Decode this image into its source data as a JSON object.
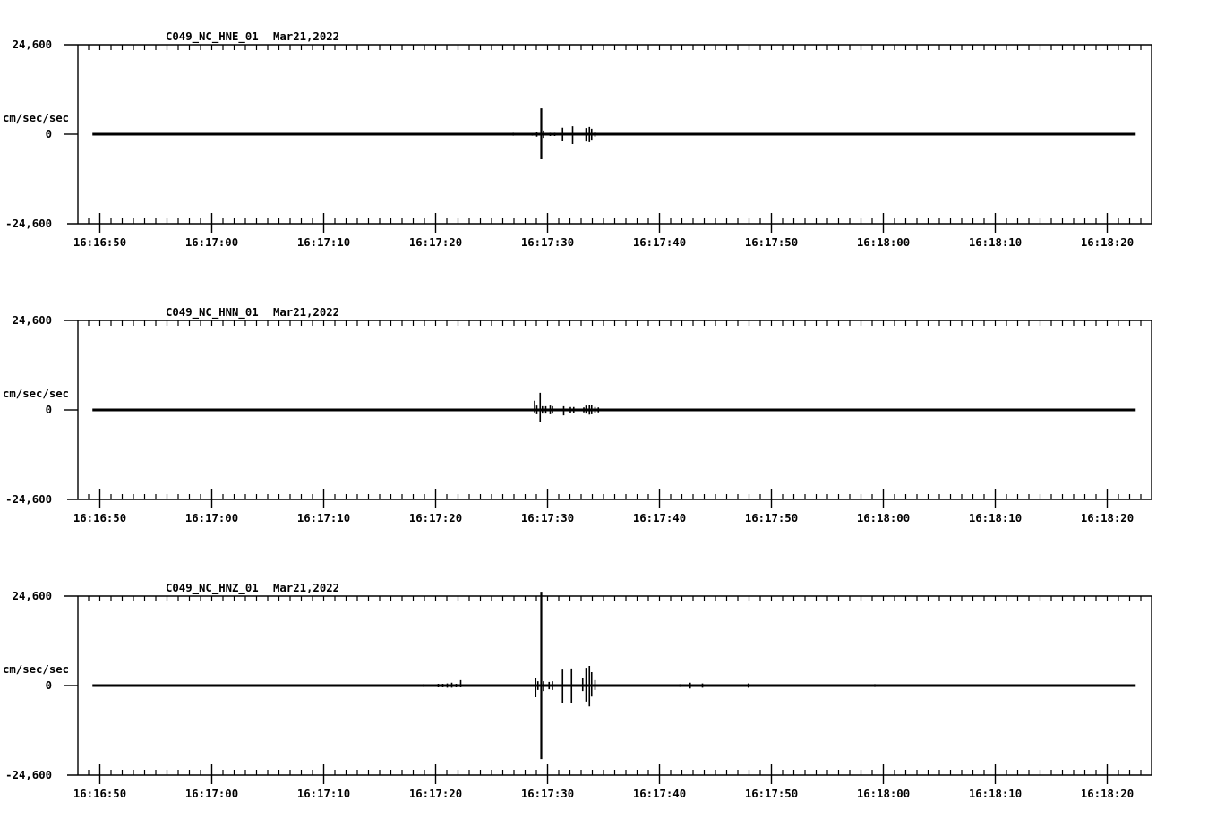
{
  "app": {
    "name": "seismogram-waveform-display",
    "background": "#ffffff",
    "ink": "#000000"
  },
  "chart_data": [
    {
      "type": "line",
      "panel_id": "HNE",
      "title_station": "C049_NC_HNE_01",
      "title_date": "Mar21,2022",
      "ylabel": "cm/sec/sec",
      "ytick_top": "24,600",
      "ytick_zero": "0",
      "ytick_bottom": "-24,600",
      "ylim": [
        -24.6,
        24.6
      ],
      "x_axis": {
        "start": "16:16:48",
        "end": "16:18:24",
        "major_tick_labels": [
          "16:16:50",
          "16:17:00",
          "16:17:10",
          "16:17:20",
          "16:17:30",
          "16:17:40",
          "16:17:50",
          "16:18:00",
          "16:18:10",
          "16:18:20"
        ],
        "major_interval_s": 10,
        "minor_interval_s": 1,
        "first_major_offset_s": 1.96
      },
      "trace": {
        "baseline": 0,
        "start_offset_s": 1.3,
        "end_offset_s": 94.5,
        "spikes_t_up_down": [
          [
            11.0,
            0.3,
            0.3
          ],
          [
            15.8,
            0.3,
            0.3
          ],
          [
            20.4,
            0.3,
            0.3
          ],
          [
            38.9,
            0.4,
            0.4
          ],
          [
            40.6,
            0.3,
            0.4
          ],
          [
            41.0,
            0.7,
            0.7
          ],
          [
            41.4,
            7.1,
            6.9
          ],
          [
            41.6,
            1.0,
            1.0
          ],
          [
            42.2,
            0.4,
            0.5
          ],
          [
            42.6,
            0.4,
            0.5
          ],
          [
            43.3,
            1.8,
            1.8
          ],
          [
            44.2,
            2.2,
            2.7
          ],
          [
            45.4,
            1.7,
            2.0
          ],
          [
            45.7,
            2.0,
            2.2
          ],
          [
            45.9,
            1.5,
            1.5
          ],
          [
            46.2,
            0.7,
            0.7
          ],
          [
            46.6,
            0.3,
            0.3
          ]
        ]
      }
    },
    {
      "type": "line",
      "panel_id": "HNN",
      "title_station": "C049_NC_HNN_01",
      "title_date": "Mar21,2022",
      "ylabel": "cm/sec/sec",
      "ytick_top": "24,600",
      "ytick_zero": "0",
      "ytick_bottom": "-24,600",
      "ylim": [
        -24.6,
        24.6
      ],
      "x_axis": {
        "start": "16:16:48",
        "end": "16:18:24",
        "major_tick_labels": [
          "16:16:50",
          "16:17:00",
          "16:17:10",
          "16:17:20",
          "16:17:30",
          "16:17:40",
          "16:17:50",
          "16:18:00",
          "16:18:10",
          "16:18:20"
        ],
        "major_interval_s": 10,
        "minor_interval_s": 1,
        "first_major_offset_s": 1.96
      },
      "trace": {
        "baseline": 0,
        "start_offset_s": 1.3,
        "end_offset_s": 94.5,
        "spikes_t_up_down": [
          [
            33.3,
            0.25,
            0.25
          ],
          [
            37.0,
            0.3,
            0.3
          ],
          [
            37.5,
            0.3,
            0.3
          ],
          [
            38.1,
            0.3,
            0.3
          ],
          [
            38.6,
            0.3,
            0.3
          ],
          [
            39.0,
            0.3,
            0.3
          ],
          [
            39.7,
            0.3,
            0.3
          ],
          [
            40.2,
            0.3,
            0.3
          ],
          [
            40.8,
            2.5,
            0.7
          ],
          [
            41.0,
            1.2,
            1.2
          ],
          [
            41.3,
            4.7,
            3.2
          ],
          [
            41.5,
            1.0,
            1.0
          ],
          [
            41.8,
            1.0,
            1.0
          ],
          [
            42.2,
            1.2,
            1.2
          ],
          [
            42.4,
            1.0,
            1.0
          ],
          [
            43.4,
            1.0,
            1.5
          ],
          [
            44.0,
            0.8,
            0.8
          ],
          [
            44.3,
            0.8,
            0.8
          ],
          [
            45.2,
            0.7,
            0.7
          ],
          [
            45.4,
            1.2,
            1.0
          ],
          [
            45.7,
            1.3,
            1.3
          ],
          [
            45.9,
            1.3,
            1.2
          ],
          [
            46.2,
            0.8,
            0.8
          ],
          [
            46.5,
            0.7,
            0.7
          ],
          [
            48.1,
            0.3,
            0.3
          ]
        ]
      }
    },
    {
      "type": "line",
      "panel_id": "HNZ",
      "title_station": "C049_NC_HNZ_01",
      "title_date": "Mar21,2022",
      "ylabel": "cm/sec/sec",
      "ytick_top": "24,600",
      "ytick_zero": "0",
      "ytick_bottom": "-24,600",
      "ylim": [
        -24.6,
        24.6
      ],
      "x_axis": {
        "start": "16:16:48",
        "end": "16:18:24",
        "major_tick_labels": [
          "16:16:50",
          "16:17:00",
          "16:17:10",
          "16:17:20",
          "16:17:30",
          "16:17:40",
          "16:17:50",
          "16:18:00",
          "16:18:10",
          "16:18:20"
        ],
        "major_interval_s": 10,
        "minor_interval_s": 1,
        "first_major_offset_s": 1.96
      },
      "trace": {
        "baseline": 0,
        "start_offset_s": 1.3,
        "end_offset_s": 94.5,
        "spikes_t_up_down": [
          [
            15.8,
            0.3,
            0.3
          ],
          [
            19.3,
            0.3,
            0.3
          ],
          [
            24.9,
            0.3,
            0.3
          ],
          [
            30.9,
            0.4,
            0.4
          ],
          [
            32.2,
            0.5,
            0.5
          ],
          [
            32.6,
            0.5,
            0.5
          ],
          [
            33.0,
            0.6,
            0.6
          ],
          [
            33.4,
            0.8,
            0.6
          ],
          [
            33.8,
            0.5,
            0.5
          ],
          [
            34.2,
            1.5,
            0.5
          ],
          [
            40.9,
            2.0,
            3.2
          ],
          [
            41.1,
            1.2,
            1.2
          ],
          [
            41.4,
            25.8,
            20.2
          ],
          [
            41.6,
            1.2,
            1.5
          ],
          [
            42.1,
            1.0,
            1.0
          ],
          [
            42.4,
            1.2,
            1.2
          ],
          [
            43.3,
            4.4,
            4.7
          ],
          [
            44.1,
            4.7,
            4.9
          ],
          [
            45.1,
            2.0,
            1.5
          ],
          [
            45.4,
            4.9,
            4.4
          ],
          [
            45.7,
            5.4,
            5.7
          ],
          [
            45.9,
            3.7,
            3.0
          ],
          [
            46.2,
            1.5,
            1.2
          ],
          [
            53.8,
            0.4,
            0.4
          ],
          [
            54.7,
            0.8,
            0.8
          ],
          [
            55.8,
            0.6,
            0.6
          ],
          [
            59.9,
            0.6,
            0.6
          ],
          [
            71.2,
            0.4,
            0.4
          ]
        ]
      }
    }
  ]
}
